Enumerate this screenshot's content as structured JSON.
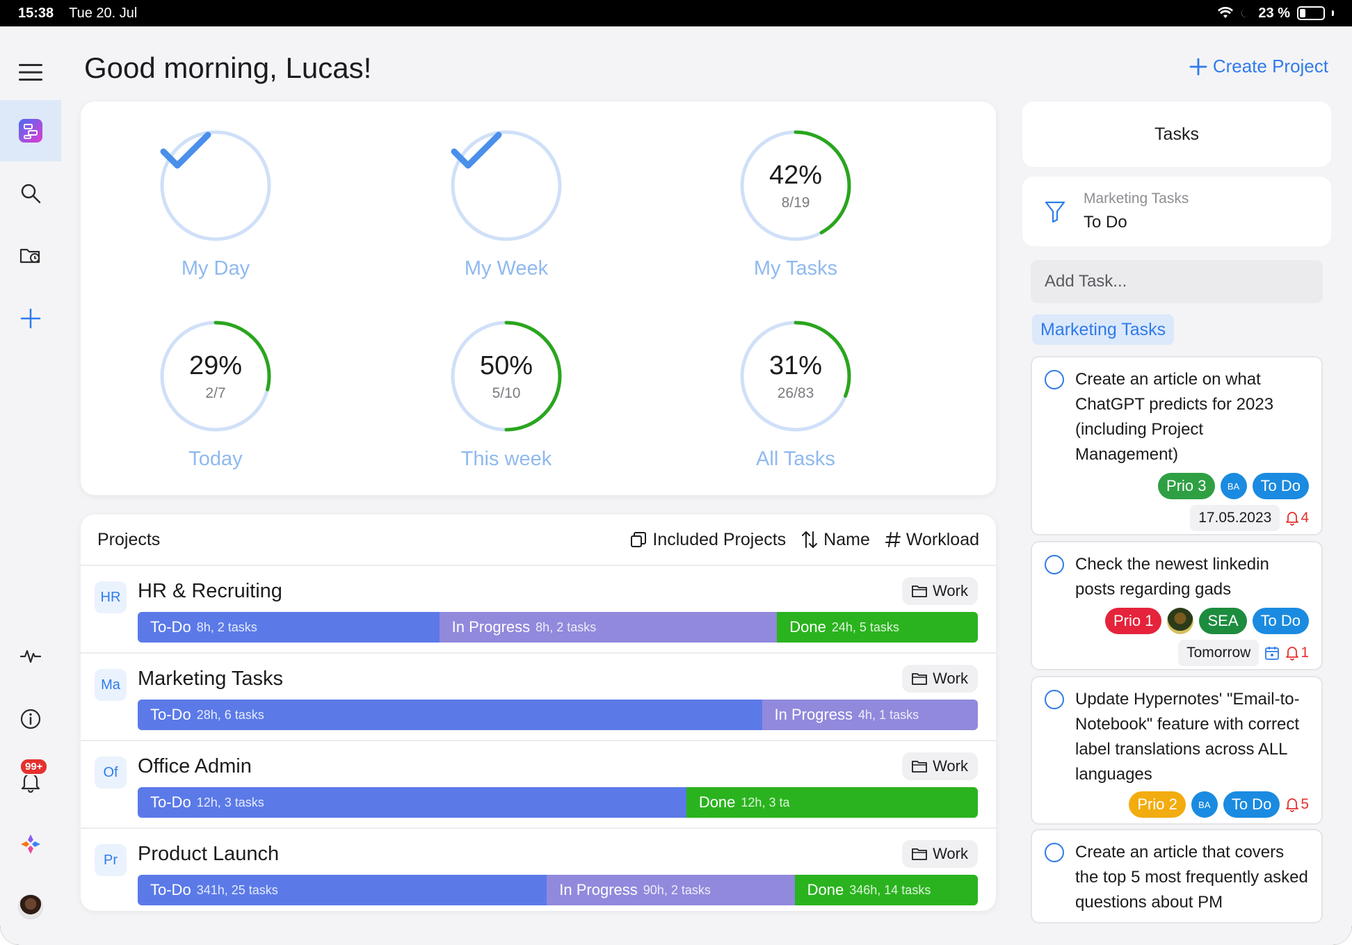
{
  "status_bar": {
    "time": "15:38",
    "date": "Tue 20. Jul",
    "battery": "23 %"
  },
  "sidebar": {
    "items": [
      {
        "name": "menu",
        "icon": "hamburger-icon"
      },
      {
        "name": "dashboard",
        "icon": "dashboard-icon",
        "active": true
      },
      {
        "name": "search",
        "icon": "search-icon"
      },
      {
        "name": "projects-folder",
        "icon": "folder-clock-icon"
      },
      {
        "name": "add",
        "icon": "plus-icon"
      },
      {
        "name": "activity",
        "icon": "activity-icon"
      },
      {
        "name": "info",
        "icon": "info-icon"
      },
      {
        "name": "notifications",
        "icon": "bell-icon",
        "badge": "99+"
      },
      {
        "name": "apps",
        "icon": "sparkle-icon"
      },
      {
        "name": "profile",
        "icon": "avatar"
      }
    ]
  },
  "header": {
    "greeting": "Good morning, Lucas!",
    "create_project": "Create Project"
  },
  "progress": [
    {
      "label": "My Day",
      "complete": true,
      "fraction": 1.0
    },
    {
      "label": "My Week",
      "complete": true,
      "fraction": 1.0
    },
    {
      "label": "My Tasks",
      "percent": "42%",
      "count": "8/19",
      "fraction": 0.42
    },
    {
      "label": "Today",
      "percent": "29%",
      "count": "2/7",
      "fraction": 0.29
    },
    {
      "label": "This week",
      "percent": "50%",
      "count": "5/10",
      "fraction": 0.5
    },
    {
      "label": "All Tasks",
      "percent": "31%",
      "count": "26/83",
      "fraction": 0.31
    }
  ],
  "projects": {
    "title": "Projects",
    "controls": {
      "included": "Included Projects",
      "sort": "Name",
      "workload": "Workload"
    },
    "rows": [
      {
        "abbr": "HR",
        "name": "HR & Recruiting",
        "tag": "Work",
        "segments": [
          {
            "type": "todo",
            "label": "To-Do",
            "detail": "8h, 2 tasks",
            "share": 0.359
          },
          {
            "type": "prog",
            "label": "In Progress",
            "detail": "8h, 2 tasks",
            "share": 0.402
          },
          {
            "type": "done",
            "label": "Done",
            "detail": "24h, 5 tasks",
            "share": 0.239
          }
        ]
      },
      {
        "abbr": "Ma",
        "name": "Marketing Tasks",
        "tag": "Work",
        "segments": [
          {
            "type": "todo",
            "label": "To-Do",
            "detail": "28h, 6 tasks",
            "share": 0.743
          },
          {
            "type": "prog",
            "label": "In Progress",
            "detail": "4h, 1 tasks",
            "share": 0.257
          }
        ]
      },
      {
        "abbr": "Of",
        "name": "Office Admin",
        "tag": "Work",
        "segments": [
          {
            "type": "todo",
            "label": "To-Do",
            "detail": "12h, 3 tasks",
            "share": 0.653
          },
          {
            "type": "done",
            "label": "Done",
            "detail": "12h, 3 ta",
            "share": 0.347
          }
        ]
      },
      {
        "abbr": "Pr",
        "name": "Product Launch",
        "tag": "Work",
        "segments": [
          {
            "type": "todo",
            "label": "To-Do",
            "detail": "341h, 25 tasks",
            "share": 0.487
          },
          {
            "type": "prog",
            "label": "In Progress",
            "detail": "90h, 2 tasks",
            "share": 0.295
          },
          {
            "type": "done",
            "label": "Done",
            "detail": "346h, 14 tasks",
            "share": 0.218
          }
        ]
      }
    ]
  },
  "tasks_panel": {
    "title": "Tasks",
    "filter": {
      "sub": "Marketing Tasks",
      "main": "To Do"
    },
    "add_placeholder": "Add Task...",
    "list_chip": "Marketing Tasks",
    "tasks": [
      {
        "title": "Create an article on what ChatGPT predicts for 2023 (including Project Management)",
        "prio": "Prio 3",
        "prio_color": "green",
        "assignee": "BA",
        "status": "To Do",
        "date": "17.05.2023",
        "reminders": "4"
      },
      {
        "title": "Check the newest linkedin posts regarding gads",
        "prio": "Prio 1",
        "prio_color": "red",
        "assignee": "SEA",
        "status": "To Do",
        "date": "Tomorrow",
        "reminders": "1"
      },
      {
        "title": "Update Hypernotes' \"Email-to-Notebook\" feature with correct label translations across ALL languages",
        "prio": "Prio 2",
        "prio_color": "yellow",
        "assignee": "BA",
        "status": "To Do",
        "reminders": "5"
      },
      {
        "title": "Create an article that covers the top 5 most frequently asked questions about PM"
      }
    ]
  }
}
